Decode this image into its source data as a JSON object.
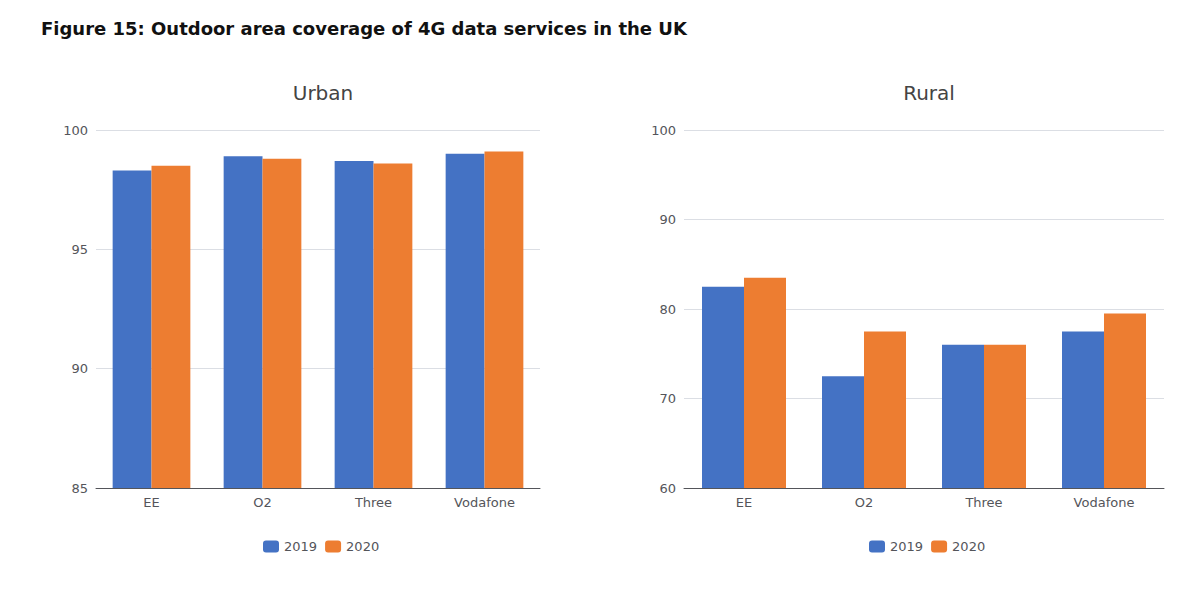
{
  "title": "Figure 15: Outdoor area coverage of 4G data services in the UK",
  "chart_data": [
    {
      "type": "bar",
      "title": "Urban",
      "categories": [
        "EE",
        "O2",
        "Three",
        "Vodafone"
      ],
      "series": [
        {
          "name": "2019",
          "color": "#4472C4",
          "values": [
            98.3,
            98.9,
            98.7,
            99.0
          ]
        },
        {
          "name": "2020",
          "color": "#ED7D31",
          "values": [
            98.5,
            98.8,
            98.6,
            99.1
          ]
        }
      ],
      "ylim": [
        85,
        100
      ],
      "yticks": [
        85,
        90,
        95,
        100
      ],
      "grid": true,
      "legend": "bottom"
    },
    {
      "type": "bar",
      "title": "Rural",
      "categories": [
        "EE",
        "O2",
        "Three",
        "Vodafone"
      ],
      "series": [
        {
          "name": "2019",
          "color": "#4472C4",
          "values": [
            82.5,
            72.5,
            76.0,
            77.5
          ]
        },
        {
          "name": "2020",
          "color": "#ED7D31",
          "values": [
            83.5,
            77.5,
            76.0,
            79.5
          ]
        }
      ],
      "ylim": [
        60,
        100
      ],
      "yticks": [
        60,
        70,
        80,
        90,
        100
      ],
      "grid": true,
      "legend": "bottom"
    }
  ]
}
